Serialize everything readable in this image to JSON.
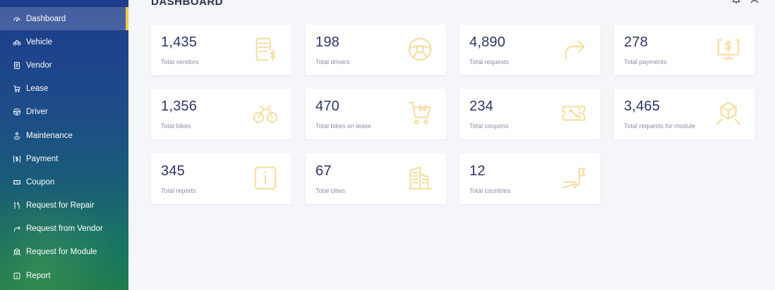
{
  "page_title": "DASHBOARD",
  "sidebar": {
    "items": [
      {
        "label": "Dashboard",
        "icon": "dashboard-gauge-icon",
        "active": true
      },
      {
        "label": "Vehicle",
        "icon": "bike-icon"
      },
      {
        "label": "Vendor",
        "icon": "document-icon"
      },
      {
        "label": "Lease",
        "icon": "cart-icon"
      },
      {
        "label": "Driver",
        "icon": "steering-wheel-icon"
      },
      {
        "label": "Maintenance",
        "icon": "hand-icon"
      },
      {
        "label": "Payment",
        "icon": "dollar-icon"
      },
      {
        "label": "Coupon",
        "icon": "ticket-icon"
      },
      {
        "label": "Request for Repair",
        "icon": "tools-icon"
      },
      {
        "label": "Request from Vendor",
        "icon": "redirect-arrow-icon"
      },
      {
        "label": "Request for Module",
        "icon": "cube-icon"
      },
      {
        "label": "Report",
        "icon": "info-icon"
      }
    ]
  },
  "header": {
    "icons": [
      "bell-icon",
      "user-icon"
    ]
  },
  "cards": [
    {
      "value": "1,435",
      "label": "Total vendors",
      "icon": "invoice-dollar-icon"
    },
    {
      "value": "198",
      "label": "Total drivers",
      "icon": "steering-wheel-icon"
    },
    {
      "value": "4,890",
      "label": "Total requests",
      "icon": "redirect-arrow-icon"
    },
    {
      "value": "278",
      "label": "Total payments",
      "icon": "monitor-dollar-icon"
    },
    {
      "value": "1,356",
      "label": "Total bikes",
      "icon": "bike-icon"
    },
    {
      "value": "470",
      "label": "Total bikes on lease",
      "icon": "cart-icon"
    },
    {
      "value": "234",
      "label": "Total coupons",
      "icon": "ticket-icon"
    },
    {
      "value": "3,465",
      "label": "Total requests for module",
      "icon": "cube-icon"
    },
    {
      "value": "345",
      "label": "Total reports",
      "icon": "info-icon"
    },
    {
      "value": "67",
      "label": "Total cities",
      "icon": "buildings-icon"
    },
    {
      "value": "12",
      "label": "Total countries",
      "icon": "map-flag-icon"
    }
  ],
  "colors": {
    "sidebar_top": "#1d3c8c",
    "sidebar_bottom": "#1f7a4a",
    "active_indicator": "#f0c94a",
    "card_icon": "#f5e0a6",
    "value_text": "#2c3467",
    "label_text": "#8b8fa3",
    "background": "#f4f6fa"
  }
}
